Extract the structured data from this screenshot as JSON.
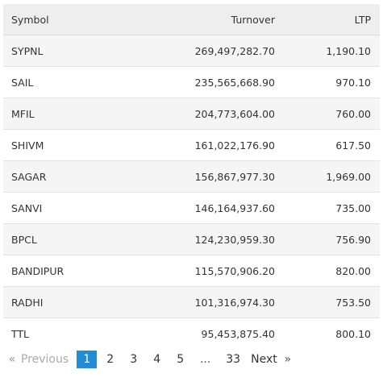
{
  "table": {
    "headers": {
      "symbol": "Symbol",
      "turnover": "Turnover",
      "ltp": "LTP"
    },
    "rows": [
      {
        "symbol": "SYPNL",
        "turnover": "269,497,282.70",
        "ltp": "1,190.10"
      },
      {
        "symbol": "SAIL",
        "turnover": "235,565,668.90",
        "ltp": "970.10"
      },
      {
        "symbol": "MFIL",
        "turnover": "204,773,604.00",
        "ltp": "760.00"
      },
      {
        "symbol": "SHIVM",
        "turnover": "161,022,176.90",
        "ltp": "617.50"
      },
      {
        "symbol": "SAGAR",
        "turnover": "156,867,977.30",
        "ltp": "1,969.00"
      },
      {
        "symbol": "SANVI",
        "turnover": "146,164,937.60",
        "ltp": "735.00"
      },
      {
        "symbol": "BPCL",
        "turnover": "124,230,959.30",
        "ltp": "756.90"
      },
      {
        "symbol": "BANDIPUR",
        "turnover": "115,570,906.20",
        "ltp": "820.00"
      },
      {
        "symbol": "RADHI",
        "turnover": "101,316,974.30",
        "ltp": "753.50"
      },
      {
        "symbol": "TTL",
        "turnover": "95,453,875.40",
        "ltp": "800.10"
      }
    ]
  },
  "pagination": {
    "first_arrow": "«",
    "previous_label": "Previous",
    "pages": [
      "1",
      "2",
      "3",
      "4",
      "5"
    ],
    "active_page": "1",
    "ellipsis": "...",
    "last_page": "33",
    "next_label": "Next",
    "last_arrow": "»",
    "active_color": "#1f8dd6"
  }
}
